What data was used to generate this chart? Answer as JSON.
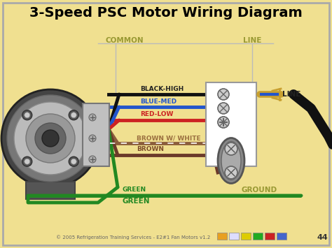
{
  "title": "3-Speed PSC Motor Wiring Diagram",
  "title_fontsize": 14,
  "bg_color": "#f0e090",
  "footer_text": "© 2005 Refrigeration Training Services - E2#1 Fan Motors v1.2",
  "page_number": "44",
  "common_label": "COMMON",
  "line_label_top": "LINE",
  "line_label_right": "LINE",
  "ground_label": "GROUND",
  "icon_colors": [
    "#e8a020",
    "#ccccff",
    "#ddcc00",
    "#22aa22",
    "#cc2222",
    "#2255cc"
  ]
}
